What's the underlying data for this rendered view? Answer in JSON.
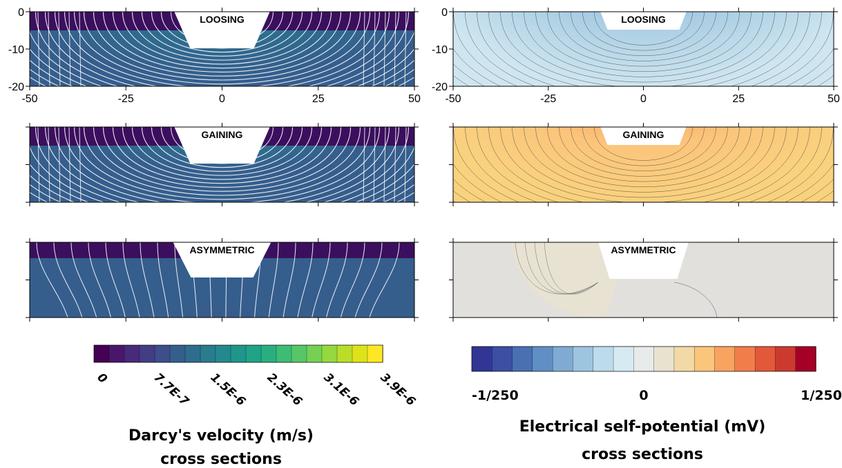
{
  "panels": {
    "velocity": {
      "sections": [
        {
          "label": "LOOSING"
        },
        {
          "label": "GAINING"
        },
        {
          "label": "ASYMMETRIC"
        }
      ],
      "x_ticks": [
        "-50",
        "-25",
        "0",
        "25",
        "50"
      ],
      "y_ticks": [
        "0",
        "-10",
        "-20"
      ],
      "colorbar": {
        "colors": [
          "#440154",
          "#481769",
          "#472a7a",
          "#433d84",
          "#3d4e8a",
          "#355e8d",
          "#2e6d8e",
          "#297b8e",
          "#23898e",
          "#1f968b",
          "#20a386",
          "#29af7f",
          "#3dbc74",
          "#56c667",
          "#75d054",
          "#95d840",
          "#bade28",
          "#dde318",
          "#fde725"
        ],
        "tick_labels": [
          "0",
          "7.7E-7",
          "1.5E-6",
          "2.3E-6",
          "3.1E-6",
          "3.9E-6"
        ],
        "title": "Darcy's velocity (m/s)",
        "subtitle": "cross sections"
      }
    },
    "self_potential": {
      "sections": [
        {
          "label": "LOOSING"
        },
        {
          "label": "GAINING"
        },
        {
          "label": "ASYMMETRIC"
        }
      ],
      "x_ticks": [
        "-50",
        "-25",
        "0",
        "25",
        "50"
      ],
      "y_ticks": [
        "0",
        "-10",
        "-20"
      ],
      "colorbar": {
        "colors": [
          "#313695",
          "#3c4fa3",
          "#4a6fb3",
          "#5f8fc4",
          "#7fabd3",
          "#9ec5e0",
          "#bcdbeb",
          "#d6eaf2",
          "#e7ebea",
          "#e9e2cf",
          "#f2d9a6",
          "#fbc57c",
          "#f8a35f",
          "#f17e4a",
          "#e3583a",
          "#cc3a2f",
          "#a50026"
        ],
        "tick_labels": [
          "-1/250",
          "0",
          "1/250"
        ],
        "title": "Electrical self-potential (mV)",
        "subtitle": "cross sections"
      }
    }
  },
  "colors": {
    "surface_band": "#3b0f5e",
    "velocity_base": "#355e8d",
    "loosing_sp_base": "#cfe6f0",
    "gaining_sp_base": "#f9d27e",
    "asym_sp_base": "#e2e0dc"
  }
}
